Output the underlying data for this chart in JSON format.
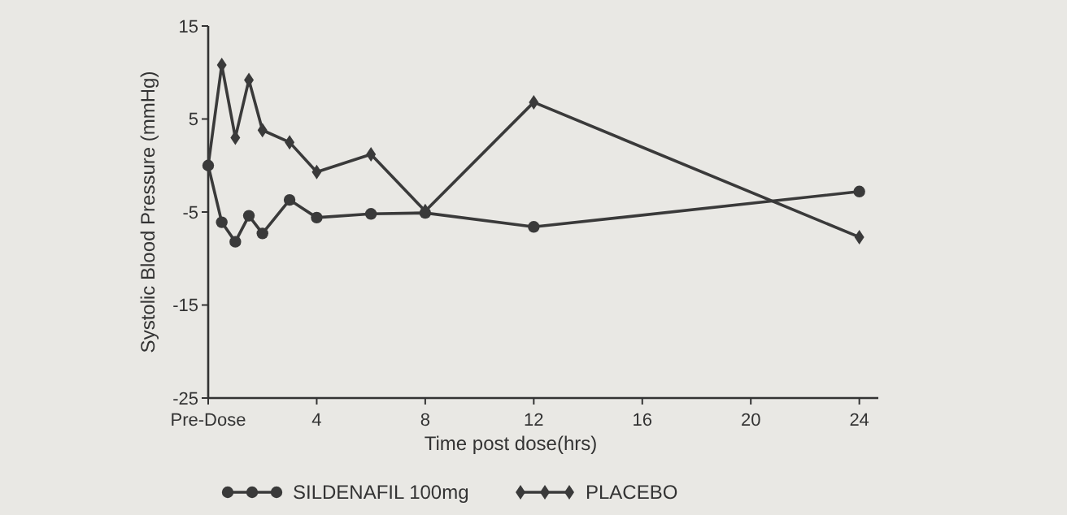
{
  "chart_data": {
    "type": "line",
    "xlabel": "Time post dose(hrs)",
    "ylabel": "Systolic Blood Pressure (mmHg)",
    "x": [
      0,
      0.5,
      1,
      1.5,
      2,
      3,
      4,
      6,
      8,
      12,
      24
    ],
    "series": [
      {
        "name": "SILDENAFIL 100mg",
        "color": "#3a3a3a",
        "marker": "circle",
        "values": [
          0,
          -6.1,
          -8.2,
          -5.4,
          -7.3,
          -3.7,
          -5.6,
          -5.2,
          -5.1,
          -6.6,
          -2.8
        ]
      },
      {
        "name": "PLACEBO",
        "color": "#3a3a3a",
        "marker": "diamond",
        "values": [
          0,
          10.8,
          3.0,
          9.2,
          3.8,
          2.5,
          -0.7,
          1.2,
          -4.9,
          6.8,
          -7.7
        ]
      }
    ],
    "xlim": [
      0,
      24.7
    ],
    "xticks": [
      {
        "value": 0,
        "label": "Pre-Dose"
      },
      4,
      8,
      12,
      16,
      20,
      24
    ],
    "ylim": [
      -25,
      15
    ],
    "yticks": [
      15,
      5,
      -5,
      -15,
      -25
    ],
    "grid": false,
    "legend": "bottom",
    "line_style": "solid"
  }
}
